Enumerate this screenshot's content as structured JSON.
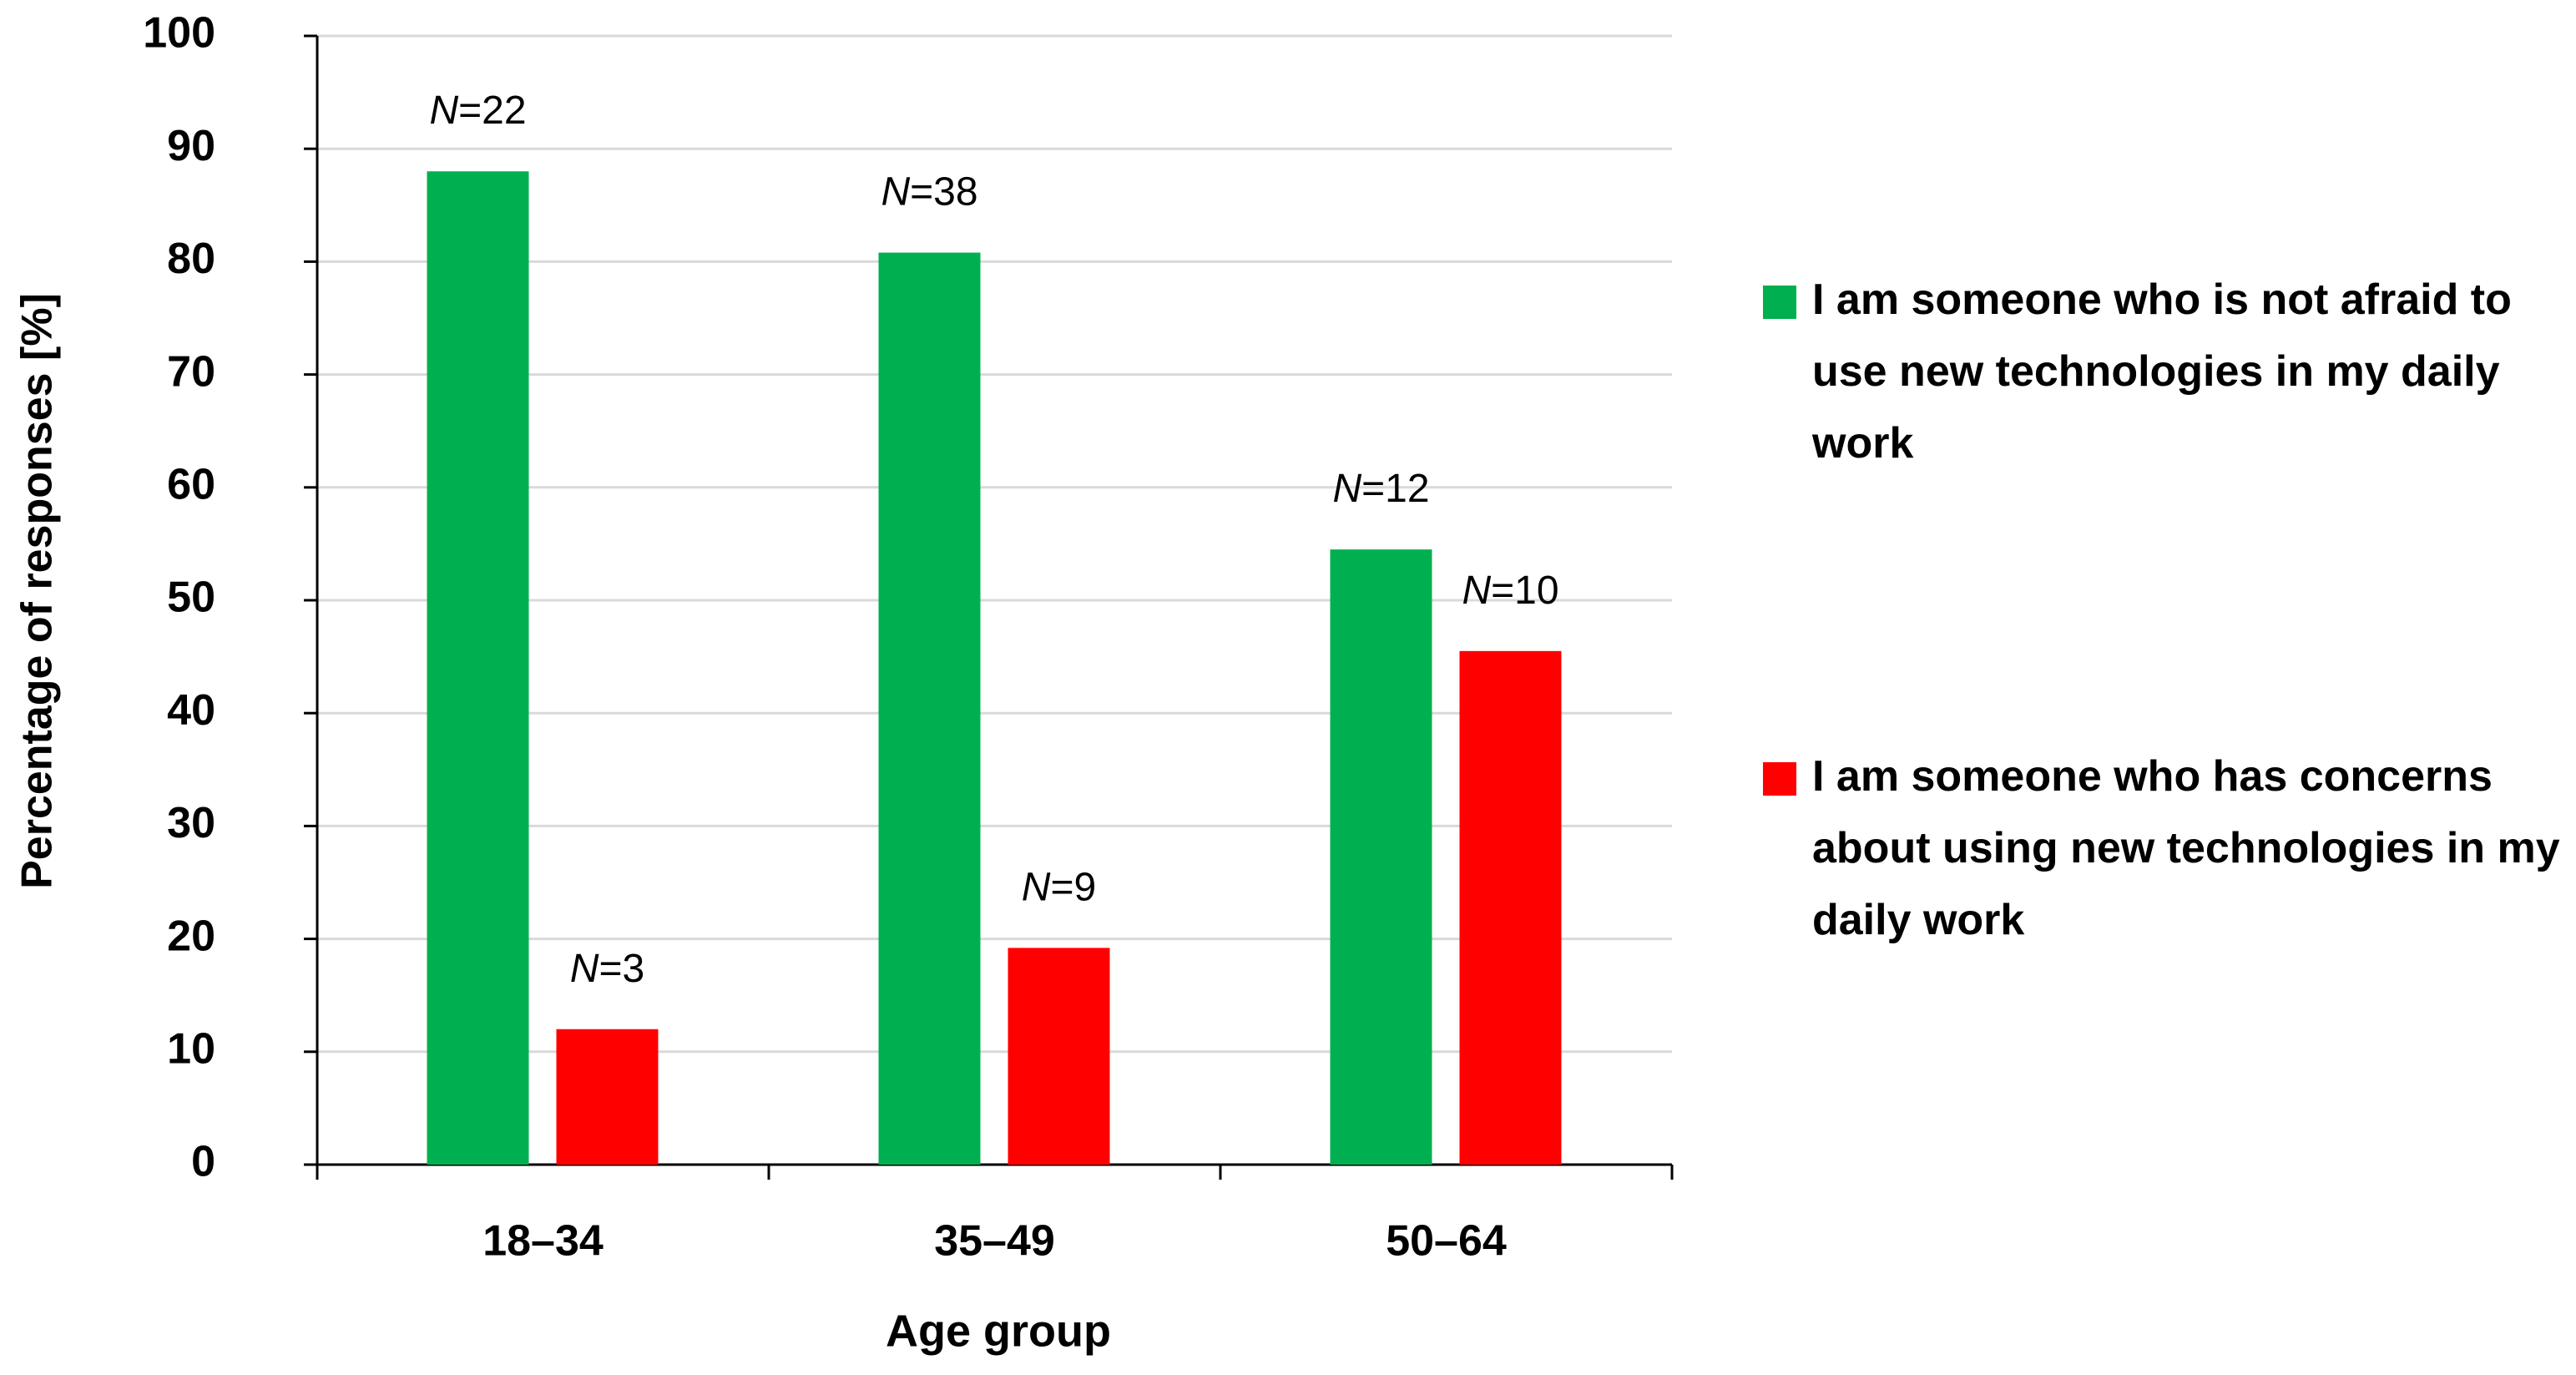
{
  "chart_data": {
    "type": "bar",
    "x_label": "Age group",
    "y_label": "Percentage of responses [%]",
    "categories": [
      "18–34",
      "35–49",
      "50–64"
    ],
    "series": [
      {
        "name": "I am someone who is not afraid to use new technologies in my daily work",
        "color": "#00b050",
        "values": [
          88,
          80.8,
          54.5
        ],
        "count_labels": [
          "N=22",
          "N=38",
          "N=12"
        ]
      },
      {
        "name": "I am someone who has concerns about using new technologies in my daily work",
        "color": "#ff0000",
        "values": [
          12,
          19.2,
          45.5
        ],
        "count_labels": [
          "N=3",
          "N=9",
          "N=10"
        ]
      }
    ],
    "ylim": [
      0,
      100
    ],
    "yticks": [
      0,
      10,
      20,
      30,
      40,
      50,
      60,
      70,
      80,
      90,
      100
    ],
    "grid": true
  }
}
